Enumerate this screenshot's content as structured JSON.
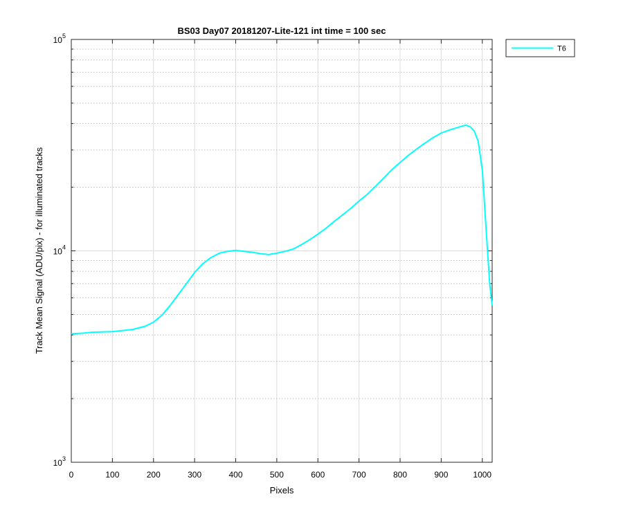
{
  "chart_data": {
    "type": "line",
    "title": "BS03 Day07 20181207-Lite-121 int time = 100 sec",
    "xlabel": "Pixels",
    "ylabel": "Track Mean Signal (ADU/pix) - for illuminated tracks",
    "xlim": [
      0,
      1024
    ],
    "ylim": [
      1000,
      100000
    ],
    "yscale": "log",
    "grid": true,
    "legend_position": "outside-top-right",
    "x_ticks": [
      0,
      100,
      200,
      300,
      400,
      500,
      600,
      700,
      800,
      900,
      1000
    ],
    "x_tick_labels": [
      "0",
      "100",
      "200",
      "300",
      "400",
      "500",
      "600",
      "700",
      "800",
      "900",
      "1000"
    ],
    "y_ticks": [
      1000,
      10000,
      100000
    ],
    "y_tick_labels": [
      {
        "base": "10",
        "exp": "3"
      },
      {
        "base": "10",
        "exp": "4"
      },
      {
        "base": "10",
        "exp": "5"
      }
    ],
    "series": [
      {
        "name": "T6",
        "color": "#00ffff",
        "x": [
          0,
          30,
          50,
          100,
          150,
          180,
          200,
          220,
          240,
          260,
          280,
          300,
          320,
          340,
          360,
          380,
          400,
          420,
          440,
          460,
          480,
          500,
          520,
          540,
          560,
          580,
          600,
          620,
          640,
          660,
          680,
          700,
          720,
          740,
          760,
          780,
          800,
          820,
          840,
          860,
          880,
          900,
          920,
          940,
          950,
          960,
          970,
          980,
          990,
          1000,
          1010,
          1018,
          1024
        ],
        "y": [
          4050,
          4080,
          4120,
          4150,
          4250,
          4400,
          4600,
          4950,
          5500,
          6200,
          7000,
          7900,
          8700,
          9300,
          9750,
          9950,
          10050,
          9950,
          9850,
          9700,
          9600,
          9750,
          9950,
          10200,
          10700,
          11300,
          12000,
          12800,
          13800,
          14800,
          15900,
          17200,
          18500,
          20200,
          22100,
          24200,
          26200,
          28300,
          30300,
          32300,
          34300,
          36100,
          37300,
          38300,
          38900,
          39300,
          38700,
          37000,
          33000,
          24000,
          12000,
          7000,
          5500
        ]
      }
    ]
  }
}
